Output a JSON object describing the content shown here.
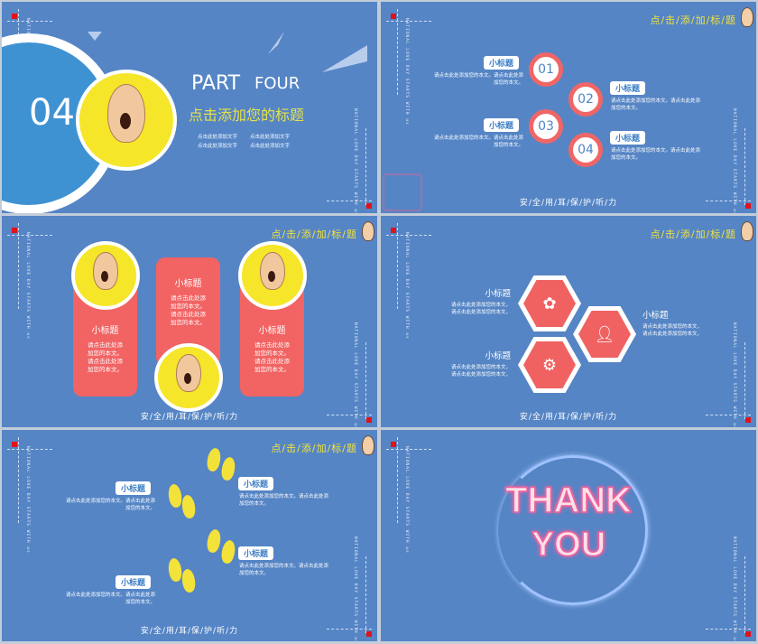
{
  "common": {
    "header_title": "点/击/添/加/标/题",
    "footer": "安/全/用/耳/保/护/听/力",
    "vertical_text": "NATIONAL LOVE DAY STARTS WITH us",
    "subtitle": "小标题",
    "body_long": "请点击此处添加您的本文。请点击此处添加您的本文。",
    "body_a": "请点击此处添加您的本文。请点击此处添",
    "body_b": "加您的本文。",
    "body_line": "请点击此处添加您的本文，",
    "card_lines": [
      "请点击此处添",
      "加您的本文。",
      "请点击此处添",
      "加您的本文。"
    ]
  },
  "slide1": {
    "number": "04",
    "part": "PART",
    "part2": "FOUR",
    "title": "点击添加您的标题",
    "texts": [
      "点击此处添加文字",
      "点击此处添加文字",
      "点击此处添加文字",
      "点击此处添加文字"
    ]
  },
  "slide2": {
    "numbers": [
      "01",
      "02",
      "03",
      "04"
    ]
  },
  "slide4": {
    "icons": [
      "rose-icon",
      "person-icon",
      "gear-car-icon"
    ]
  },
  "slide6": {
    "line1": "THANK",
    "line2": "YOU"
  },
  "colors": {
    "slide_bg": "#5585c5",
    "accent_red": "#f06666",
    "accent_yellow": "#f3e23a",
    "marker": "#e0121b"
  }
}
